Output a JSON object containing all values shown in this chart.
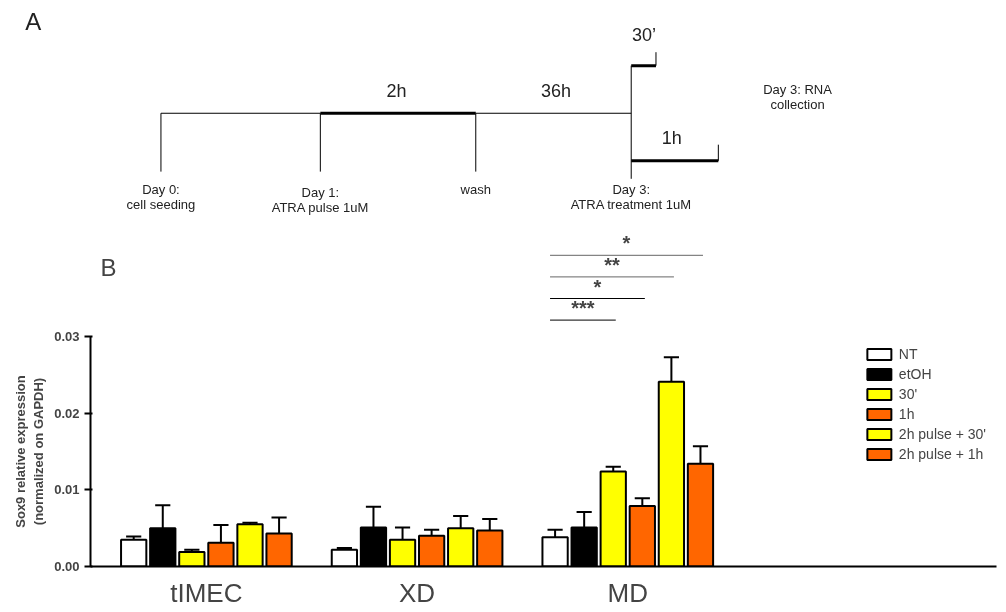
{
  "chart_data": [
    {
      "type": "other",
      "annotations": [
        "A",
        "Day 0:\ncell seeding",
        "Day 1:\nATRA pulse 1uM",
        "wash",
        "Day 3:\nATRA treatment 1uM",
        "2h",
        "36h",
        "30’",
        "1h",
        "Day 3: RNA\ncollection"
      ]
    },
    {
      "type": "bar",
      "ylabel": "Sox9 relative expression\n(normalized on GAPDH)",
      "categories": [
        "tIMEC",
        "XD",
        "MD"
      ],
      "series": [
        {
          "name": "NT",
          "color": "#ffffff",
          "values": [
            0.0035,
            0.0022,
            0.0038
          ],
          "errors": [
            [
              0.0035,
              0.0039
            ],
            [
              0.0022,
              0.0024
            ],
            [
              0.0038,
              0.0048
            ]
          ]
        },
        {
          "name": "etOH",
          "color": "#000000",
          "values": [
            0.005,
            0.0051,
            0.0051
          ],
          "errors": [
            [
              0.005,
              0.008
            ],
            [
              0.0051,
              0.0078
            ],
            [
              0.0051,
              0.0071
            ]
          ]
        },
        {
          "name": "30'",
          "color": "#ffff00",
          "values": [
            0.0019,
            0.0035,
            0.0124
          ],
          "errors": [
            [
              0.0019,
              0.0022
            ],
            [
              0.0035,
              0.0051
            ],
            [
              0.0124,
              0.013
            ]
          ]
        },
        {
          "name": "1h",
          "color": "#ff6600",
          "values": [
            0.0031,
            0.004,
            0.0079
          ],
          "errors": [
            [
              0.0031,
              0.0054
            ],
            [
              0.004,
              0.0048
            ],
            [
              0.0079,
              0.0089
            ]
          ]
        },
        {
          "name": "2h pulse + 30'",
          "color": "#ffff00",
          "values": [
            0.0055,
            0.005,
            0.0241
          ],
          "errors": [
            [
              0.0055,
              0.0057
            ],
            [
              0.005,
              0.0066
            ],
            [
              0.0241,
              0.0273
            ]
          ]
        },
        {
          "name": "2h pulse + 1h",
          "color": "#ff6600",
          "values": [
            0.0043,
            0.0047,
            0.0134
          ],
          "errors": [
            [
              0.0043,
              0.0064
            ],
            [
              0.0047,
              0.0062
            ],
            [
              0.0134,
              0.0157
            ]
          ]
        }
      ],
      "ylim": [
        0,
        0.03
      ],
      "yticks": [
        {
          "value": 0,
          "label": "0.00"
        },
        {
          "value": 0.01,
          "label": "0.01"
        },
        {
          "value": 0.02,
          "label": "0.02"
        },
        {
          "value": 0.03,
          "label": "0.03"
        }
      ],
      "grid": false,
      "legend": "right",
      "annotations": [
        "B",
        "***",
        "*",
        "**",
        "*"
      ]
    }
  ]
}
